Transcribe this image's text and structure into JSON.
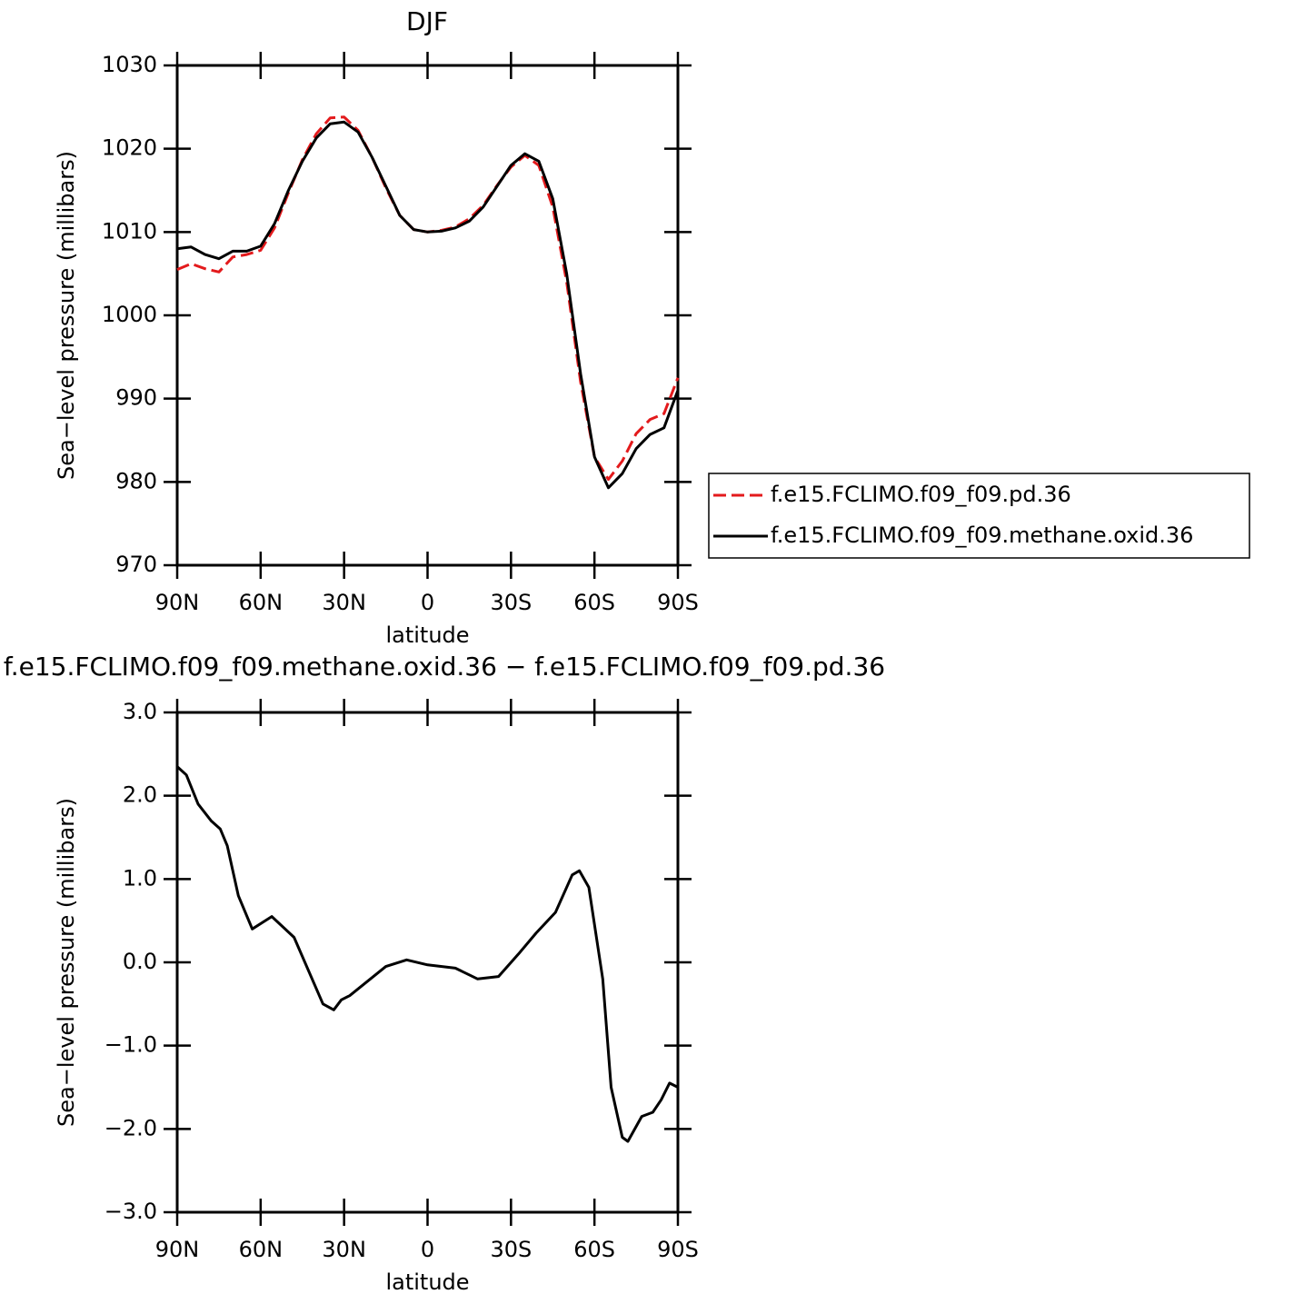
{
  "chart_data": [
    {
      "type": "line",
      "title": "DJF",
      "x_label": "latitude",
      "y_label": "Sea−level pressure (millibars)",
      "x": [
        90,
        85,
        80,
        75,
        70,
        65,
        60,
        55,
        50,
        45,
        40,
        35,
        30,
        25,
        20,
        15,
        10,
        5,
        0,
        -5,
        -10,
        -15,
        -20,
        -25,
        -30,
        -35,
        -40,
        -45,
        -50,
        -55,
        -60,
        -65,
        -70,
        -75,
        -80,
        -85,
        -90
      ],
      "series": [
        {
          "name": "f.e15.FCLIMO.f09_f09.pd.36",
          "color": "#e31a1c",
          "dash": true,
          "values": [
            1005.5,
            1006.2,
            1005.6,
            1005.2,
            1007,
            1007.3,
            1007.8,
            1010.5,
            1014.7,
            1018.7,
            1021.8,
            1023.7,
            1023.8,
            1022.2,
            1019,
            1015.3,
            1012,
            1010.3,
            1010,
            1010.2,
            1010.6,
            1011.6,
            1013.2,
            1015.6,
            1017.8,
            1019.2,
            1018,
            1013,
            1004,
            992,
            983,
            980.3,
            982.5,
            985.8,
            987.5,
            988.2,
            992.5
          ]
        },
        {
          "name": "f.e15.FCLIMO.f09_f09.methane.oxid.36",
          "color": "#000000",
          "dash": false,
          "values": [
            1008,
            1008.2,
            1007.3,
            1006.8,
            1007.7,
            1007.7,
            1008.3,
            1011,
            1015,
            1018.5,
            1021.3,
            1023,
            1023.2,
            1022,
            1019,
            1015.5,
            1012,
            1010.3,
            1010,
            1010.1,
            1010.5,
            1011.3,
            1013,
            1015.5,
            1018,
            1019.4,
            1018.5,
            1014,
            1005,
            993,
            983,
            979.3,
            981,
            984,
            985.7,
            986.5,
            991
          ]
        }
      ],
      "xlim": [
        90,
        -90
      ],
      "xticks": [
        {
          "value": 90,
          "label": "90N"
        },
        {
          "value": 60,
          "label": "60N"
        },
        {
          "value": 30,
          "label": "30N"
        },
        0,
        {
          "value": -30,
          "label": "30S"
        },
        {
          "value": -60,
          "label": "60S"
        },
        {
          "value": -90,
          "label": "90S"
        }
      ],
      "ylim": [
        970,
        1030
      ],
      "yticks": [
        970,
        980,
        990,
        1000,
        1010,
        1020,
        1030
      ],
      "legend": "right"
    },
    {
      "type": "line",
      "title": "f.e15.FCLIMO.f09_f09.methane.oxid.36 − f.e15.FCLIMO.f09_f09.pd.36",
      "x_label": "latitude",
      "y_label": "Sea−level pressure (millibars)",
      "x": [
        90,
        86.7,
        82.5,
        77.8,
        74.5,
        72,
        68,
        63,
        56,
        48,
        37.6,
        33.7,
        31,
        28,
        15,
        7.5,
        0,
        -10,
        -15,
        -18,
        -25.5,
        -32.7,
        -39,
        -46,
        -52,
        -54.6,
        -58,
        -63,
        -66,
        -70,
        -72,
        -77,
        -81,
        -84,
        -87,
        -90
      ],
      "series": [
        {
          "name": "difference",
          "color": "#000000",
          "dash": false,
          "values": [
            2.35,
            2.25,
            1.9,
            1.7,
            1.6,
            1.4,
            0.8,
            0.4,
            0.55,
            0.3,
            -0.5,
            -0.57,
            -0.45,
            -0.4,
            -0.05,
            0.03,
            -0.03,
            -0.07,
            -0.15,
            -0.2,
            -0.17,
            0.1,
            0.35,
            0.6,
            1.05,
            1.1,
            0.9,
            -0.2,
            -1.5,
            -2.1,
            -2.15,
            -1.85,
            -1.8,
            -1.65,
            -1.45,
            -1.5
          ]
        }
      ],
      "xlim": [
        90,
        -90
      ],
      "xticks": [
        {
          "value": 90,
          "label": "90N"
        },
        {
          "value": 60,
          "label": "60N"
        },
        {
          "value": 30,
          "label": "30N"
        },
        0,
        {
          "value": -30,
          "label": "30S"
        },
        {
          "value": -60,
          "label": "60S"
        },
        {
          "value": -90,
          "label": "90S"
        }
      ],
      "ylim": [
        -3,
        3
      ],
      "yticks": [
        {
          "value": -3,
          "label": "−3.0"
        },
        {
          "value": -2,
          "label": "−2.0"
        },
        {
          "value": -1,
          "label": "−1.0"
        },
        {
          "value": 0,
          "label": "0.0"
        },
        {
          "value": 1,
          "label": "1.0"
        },
        {
          "value": 2,
          "label": "2.0"
        },
        {
          "value": 3,
          "label": "3.0"
        }
      ]
    }
  ]
}
